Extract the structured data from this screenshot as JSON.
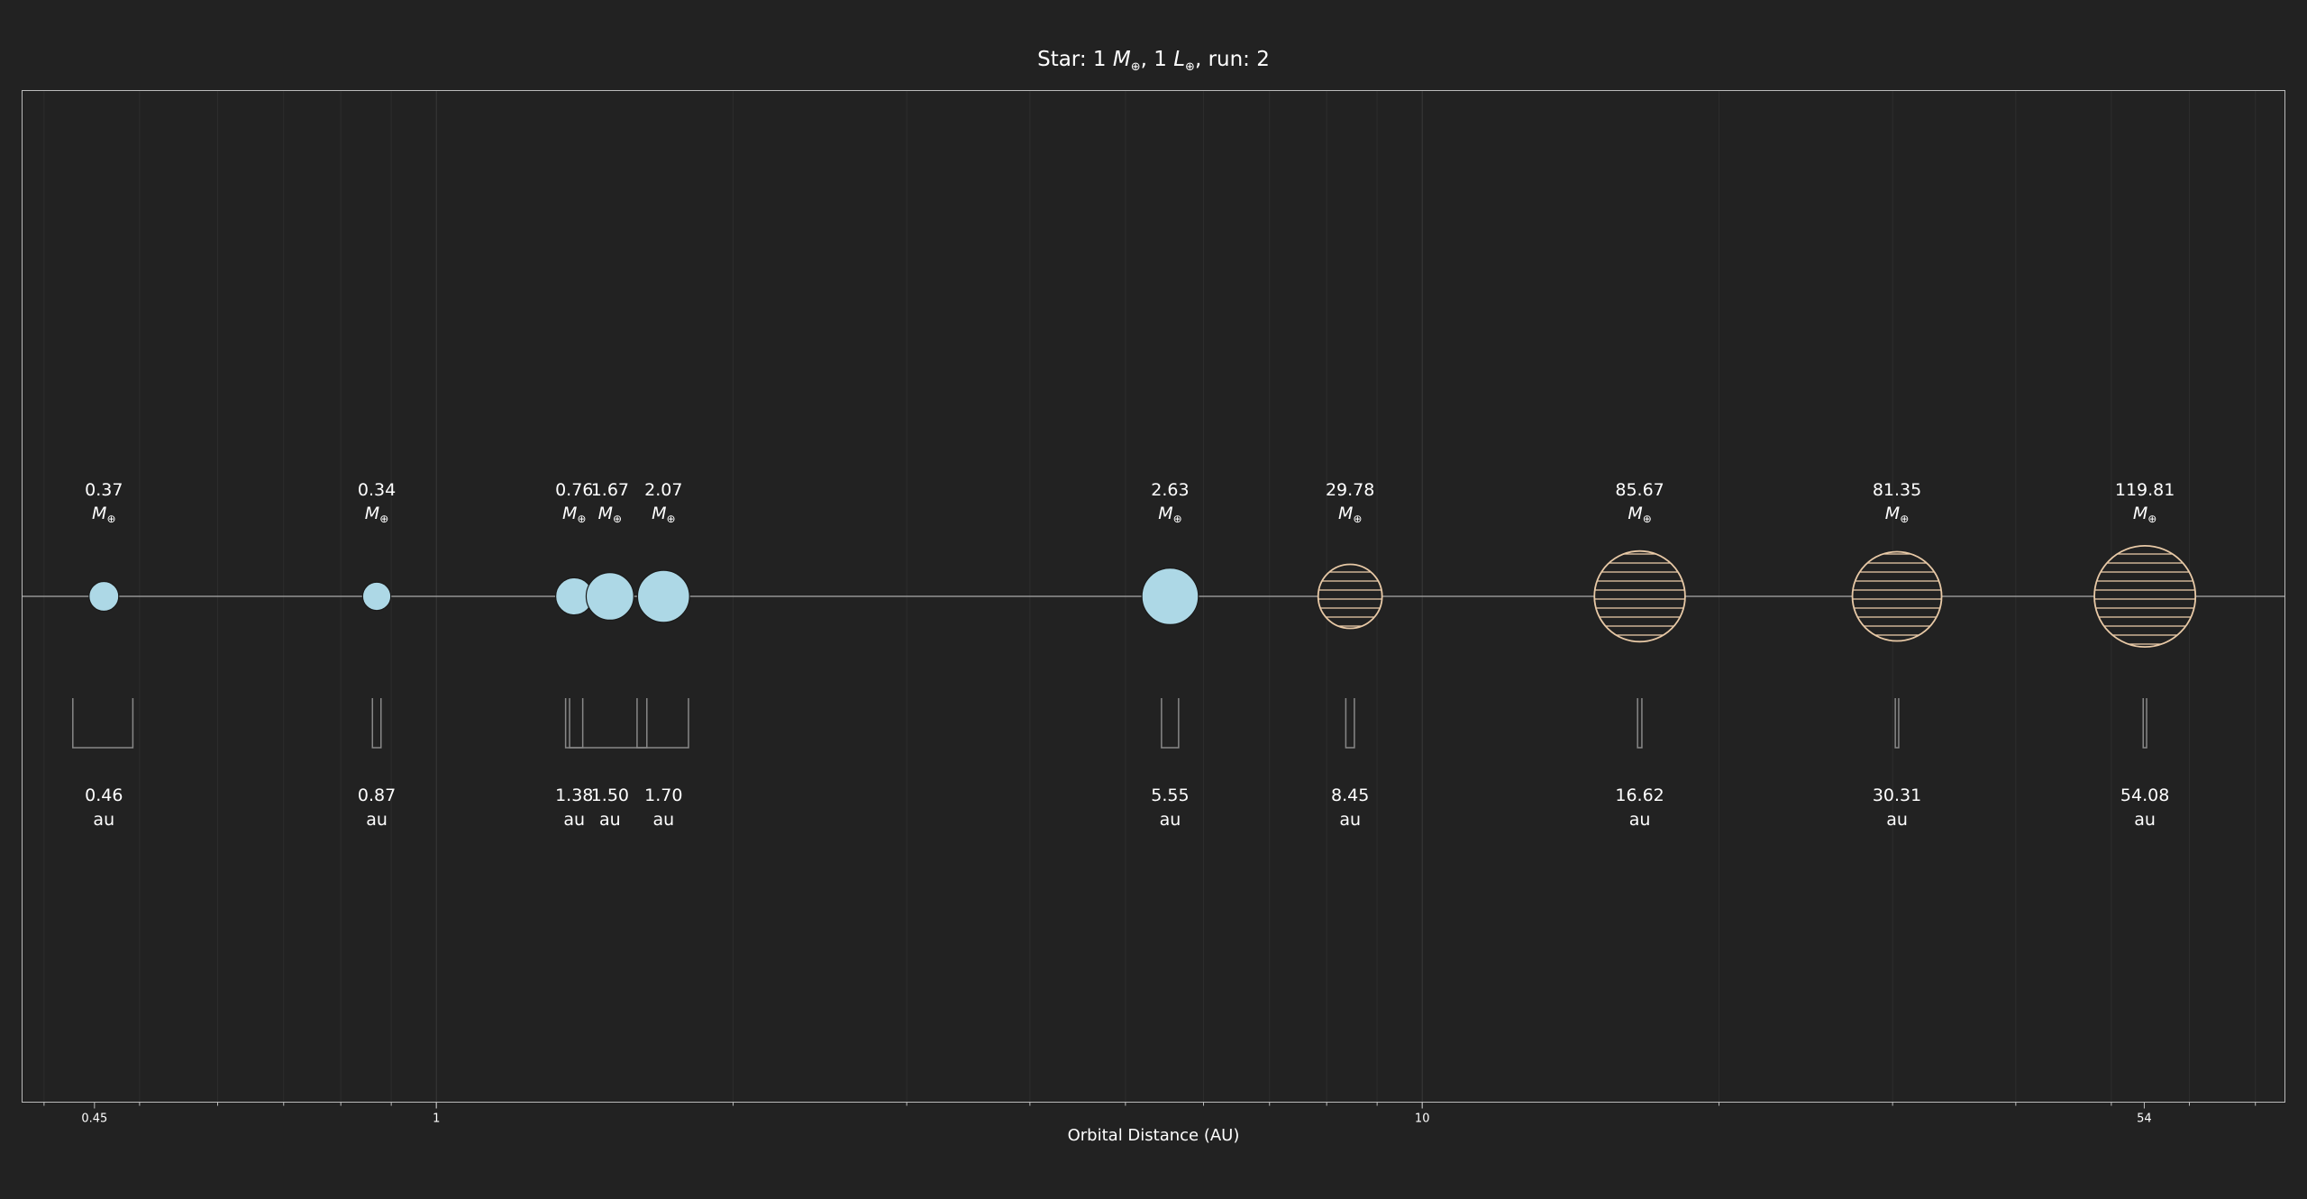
{
  "chart_data": {
    "type": "scatter",
    "title": "Star: 1 M⊕, 1 L⊕, run: 2",
    "title_parts": {
      "prefix": "Star: 1 ",
      "mass_symbol": "M",
      "mass_sub": "⊕",
      "mid": ", 1 ",
      "lum_symbol": "L",
      "lum_sub": "⊕",
      "suffix": ", run: 2"
    },
    "xlabel": "Orbital Distance (AU)",
    "ylabel": "",
    "xscale": "log",
    "xlim": [
      0.38,
      75
    ],
    "grid": true,
    "x_ticks": [
      {
        "value": 0.45,
        "label": "0.45"
      },
      {
        "value": 1,
        "label": "1"
      },
      {
        "value": 10,
        "label": "10"
      },
      {
        "value": 54,
        "label": "54"
      }
    ],
    "mass_unit_symbol": "M",
    "mass_unit_sub": "⊕",
    "distance_unit": "au",
    "planets": [
      {
        "distance": 0.46,
        "distance_label": "0.46",
        "mass": 0.37,
        "mass_label": "0.37",
        "type": "rocky",
        "size": 0.2,
        "ecc": 0.07
      },
      {
        "distance": 0.87,
        "distance_label": "0.87",
        "mass": 0.34,
        "mass_label": "0.34",
        "type": "rocky",
        "size": 0.19,
        "ecc": 0.01
      },
      {
        "distance": 1.38,
        "distance_label": "1.38",
        "mass": 0.76,
        "mass_label": "0.76",
        "type": "rocky",
        "size": 0.25,
        "ecc": 0.02
      },
      {
        "distance": 1.5,
        "distance_label": "1.50",
        "mass": 1.67,
        "mass_label": "1.67",
        "type": "rocky",
        "size": 0.32,
        "ecc": 0.09
      },
      {
        "distance": 1.7,
        "distance_label": "1.70",
        "mass": 2.07,
        "mass_label": "2.07",
        "type": "rocky",
        "size": 0.35,
        "ecc": 0.06
      },
      {
        "distance": 5.55,
        "distance_label": "5.55",
        "mass": 2.63,
        "mass_label": "2.63",
        "type": "rocky",
        "size": 0.38,
        "ecc": 0.02
      },
      {
        "distance": 8.45,
        "distance_label": "8.45",
        "mass": 29.78,
        "mass_label": "29.78",
        "type": "gas",
        "size": 0.43,
        "ecc": 0.01
      },
      {
        "distance": 16.62,
        "distance_label": "16.62",
        "mass": 85.67,
        "mass_label": "85.67",
        "type": "gas",
        "size": 0.61,
        "ecc": 0.005
      },
      {
        "distance": 30.31,
        "distance_label": "30.31",
        "mass": 81.35,
        "mass_label": "81.35",
        "type": "gas",
        "size": 0.6,
        "ecc": 0.004
      },
      {
        "distance": 54.08,
        "distance_label": "54.08",
        "mass": 119.81,
        "mass_label": "119.81",
        "type": "gas",
        "size": 0.68,
        "ecc": 0.004
      }
    ],
    "colors": {
      "background": "#222222",
      "rocky_fill": "#add8e6",
      "gas_fill": "#222222",
      "gas_stroke": "#e8c9a6",
      "axis": "#bbbbbb",
      "grid": "#333333",
      "text": "#ffffff",
      "ecc_bar": "#888888"
    }
  }
}
